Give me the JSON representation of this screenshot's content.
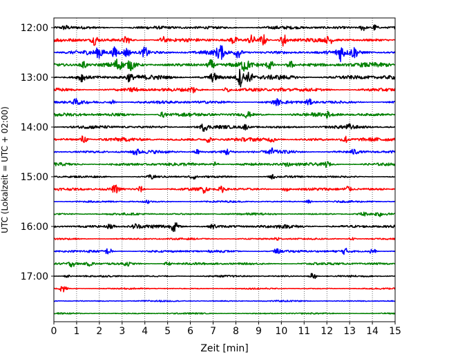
{
  "chart_data": {
    "type": "line",
    "title": "",
    "xlabel": "Zeit  [min]",
    "ylabel": "UTC (Lokalzeit = UTC + 02:00)",
    "xlim": [
      0,
      15
    ],
    "x_ticks": [
      "0",
      "1",
      "2",
      "3",
      "4",
      "5",
      "6",
      "7",
      "8",
      "9",
      "10",
      "11",
      "12",
      "13",
      "14",
      "15"
    ],
    "y_tick_labels": [
      {
        "label": "12:00",
        "row": 0
      },
      {
        "label": "13:00",
        "row": 4
      },
      {
        "label": "14:00",
        "row": 8
      },
      {
        "label": "15:00",
        "row": 12
      },
      {
        "label": "16:00",
        "row": 16
      },
      {
        "label": "17:00",
        "row": 20
      }
    ],
    "grid": "vertical-dotted",
    "colors": [
      "#000000",
      "#ff0000",
      "#0000ff",
      "#008000"
    ],
    "traces": [
      {
        "start": "12:00",
        "color": "#000000",
        "noise": 0.9,
        "bursts": [
          [
            13.6,
            2.2
          ],
          [
            14.1,
            2.0
          ],
          [
            0.5,
            1.2
          ]
        ]
      },
      {
        "start": "12:15",
        "color": "#ff0000",
        "noise": 1.0,
        "bursts": [
          [
            1.8,
            3.0
          ],
          [
            3.2,
            2.4
          ],
          [
            4.8,
            2.0
          ],
          [
            7.9,
            2.4
          ],
          [
            8.7,
            3.0
          ],
          [
            9.2,
            3.6
          ],
          [
            10.1,
            4.2
          ],
          [
            12.1,
            2.4
          ]
        ]
      },
      {
        "start": "12:30",
        "color": "#0000ff",
        "noise": 1.2,
        "bursts": [
          [
            2.0,
            3.2
          ],
          [
            2.7,
            3.4
          ],
          [
            3.2,
            3.0
          ],
          [
            4.0,
            3.0
          ],
          [
            7.3,
            4.6
          ],
          [
            8.1,
            3.0
          ],
          [
            12.6,
            4.6
          ],
          [
            13.2,
            3.0
          ]
        ]
      },
      {
        "start": "12:45",
        "color": "#008000",
        "noise": 1.3,
        "bursts": [
          [
            1.3,
            2.4
          ],
          [
            2.8,
            3.2
          ],
          [
            3.4,
            2.6
          ],
          [
            6.9,
            3.0
          ],
          [
            8.4,
            3.6
          ],
          [
            9.5,
            2.8
          ],
          [
            10.4,
            2.4
          ]
        ]
      },
      {
        "start": "13:00",
        "color": "#000000",
        "noise": 1.3,
        "bursts": [
          [
            1.2,
            2.8
          ],
          [
            3.3,
            2.2
          ],
          [
            7.0,
            2.4
          ],
          [
            8.2,
            5.6
          ],
          [
            8.6,
            3.2
          ]
        ]
      },
      {
        "start": "13:15",
        "color": "#ff0000",
        "noise": 1.0,
        "bursts": [
          [
            3.5,
            1.6
          ],
          [
            6.1,
            1.8
          ],
          [
            7.6,
            1.6
          ],
          [
            10.0,
            1.4
          ]
        ]
      },
      {
        "start": "13:30",
        "color": "#0000ff",
        "noise": 0.9,
        "bursts": [
          [
            1.0,
            1.8
          ],
          [
            2.6,
            1.4
          ],
          [
            9.8,
            1.6
          ],
          [
            11.2,
            1.8
          ]
        ]
      },
      {
        "start": "13:45",
        "color": "#008000",
        "noise": 1.0,
        "bursts": [
          [
            4.8,
            1.6
          ],
          [
            8.5,
            1.8
          ],
          [
            12.0,
            1.6
          ]
        ]
      },
      {
        "start": "14:00",
        "color": "#000000",
        "noise": 0.9,
        "bursts": [
          [
            6.6,
            2.2
          ],
          [
            8.4,
            1.6
          ],
          [
            13.0,
            1.2
          ]
        ]
      },
      {
        "start": "14:15",
        "color": "#ff0000",
        "noise": 1.0,
        "bursts": [
          [
            1.3,
            2.6
          ],
          [
            6.8,
            1.8
          ],
          [
            9.6,
            1.6
          ],
          [
            12.8,
            2.2
          ]
        ]
      },
      {
        "start": "14:30",
        "color": "#0000ff",
        "noise": 0.9,
        "bursts": [
          [
            3.6,
            2.0
          ],
          [
            6.3,
            1.6
          ],
          [
            7.6,
            1.8
          ],
          [
            9.6,
            1.8
          ],
          [
            13.2,
            1.4
          ]
        ]
      },
      {
        "start": "14:45",
        "color": "#008000",
        "noise": 0.9,
        "bursts": [
          [
            7.1,
            1.6
          ],
          [
            10.2,
            1.4
          ],
          [
            12.0,
            1.6
          ]
        ]
      },
      {
        "start": "15:00",
        "color": "#000000",
        "noise": 0.6,
        "bursts": [
          [
            4.3,
            1.4
          ],
          [
            6.1,
            1.6
          ],
          [
            9.6,
            1.2
          ]
        ]
      },
      {
        "start": "15:15",
        "color": "#ff0000",
        "noise": 0.8,
        "bursts": [
          [
            2.7,
            2.4
          ],
          [
            3.8,
            1.8
          ],
          [
            6.6,
            2.0
          ],
          [
            7.4,
            1.8
          ],
          [
            10.2,
            1.6
          ],
          [
            12.9,
            2.4
          ]
        ]
      },
      {
        "start": "15:30",
        "color": "#0000ff",
        "noise": 0.5,
        "bursts": [
          [
            4.1,
            1.2
          ],
          [
            11.2,
            1.0
          ]
        ]
      },
      {
        "start": "15:45",
        "color": "#008000",
        "noise": 0.6,
        "bursts": [
          [
            13.6,
            1.2
          ],
          [
            14.3,
            1.2
          ]
        ]
      },
      {
        "start": "16:00",
        "color": "#000000",
        "noise": 1.0,
        "bursts": [
          [
            2.5,
            1.8
          ],
          [
            3.6,
            1.6
          ],
          [
            5.3,
            3.0
          ],
          [
            7.0,
            1.2
          ]
        ]
      },
      {
        "start": "16:15",
        "color": "#ff0000",
        "noise": 0.5,
        "bursts": [
          [
            9.8,
            1.4
          ],
          [
            13.1,
            1.2
          ]
        ]
      },
      {
        "start": "16:30",
        "color": "#0000ff",
        "noise": 0.7,
        "bursts": [
          [
            2.4,
            2.0
          ],
          [
            9.8,
            1.4
          ],
          [
            12.8,
            1.6
          ],
          [
            14.0,
            2.2
          ]
        ]
      },
      {
        "start": "16:45",
        "color": "#008000",
        "noise": 0.7,
        "bursts": [
          [
            0.8,
            1.6
          ],
          [
            1.6,
            1.4
          ],
          [
            3.2,
            1.2
          ],
          [
            5.0,
            1.2
          ]
        ]
      },
      {
        "start": "17:00",
        "color": "#000000",
        "noise": 0.5,
        "bursts": [
          [
            11.4,
            3.0
          ],
          [
            0.6,
            1.0
          ]
        ]
      },
      {
        "start": "17:15",
        "color": "#ff0000",
        "noise": 0.4,
        "bursts": [
          [
            0.4,
            2.4
          ]
        ]
      },
      {
        "start": "17:30",
        "color": "#0000ff",
        "noise": 0.4,
        "bursts": []
      },
      {
        "start": "17:45",
        "color": "#008000",
        "noise": 0.4,
        "bursts": []
      }
    ]
  }
}
